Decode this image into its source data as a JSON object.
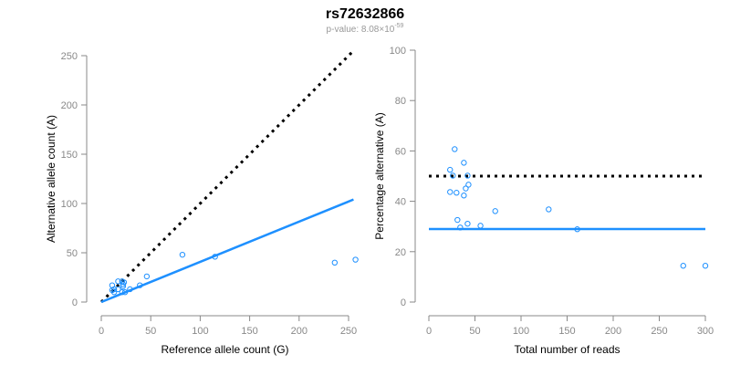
{
  "title": "rs72632866",
  "subtitle_prefix": "p-value: 8.08×10",
  "subtitle_exp": "-59",
  "colors": {
    "points": "#1E90FF",
    "fit": "#1E90FF",
    "expected": "#000000",
    "axis": "#888888"
  },
  "chart_data": [
    {
      "type": "scatter",
      "xlabel": "Reference allele count (G)",
      "ylabel": "Alternative allele count (A)",
      "xlim": [
        0,
        250
      ],
      "ylim": [
        0,
        250
      ],
      "xticks": [
        0,
        50,
        100,
        150,
        200,
        250
      ],
      "yticks": [
        0,
        50,
        100,
        150,
        200,
        250
      ],
      "points": [
        [
          11,
          17
        ],
        [
          17,
          21
        ],
        [
          11,
          12
        ],
        [
          13,
          13
        ],
        [
          21,
          21
        ],
        [
          23,
          20
        ],
        [
          22,
          18
        ],
        [
          13,
          10
        ],
        [
          17,
          13
        ],
        [
          22,
          16
        ],
        [
          46,
          26
        ],
        [
          82,
          48
        ],
        [
          21,
          10
        ],
        [
          29,
          13
        ],
        [
          24,
          10
        ],
        [
          39,
          17
        ],
        [
          115,
          46
        ],
        [
          236,
          40
        ],
        [
          257,
          43
        ]
      ],
      "lines": [
        {
          "name": "expected",
          "style": "dotted",
          "slope": 1.0,
          "intercept": 0,
          "x_range": [
            0,
            255
          ]
        },
        {
          "name": "fit",
          "style": "solid",
          "slope": 0.408,
          "intercept": 0,
          "x_range": [
            0,
            255
          ]
        }
      ]
    },
    {
      "type": "scatter",
      "xlabel": "Total number of reads",
      "ylabel": "Percentage alternative (A)",
      "xlim": [
        0,
        300
      ],
      "ylim": [
        0,
        100
      ],
      "xticks": [
        0,
        50,
        100,
        150,
        200,
        250,
        300
      ],
      "yticks": [
        0,
        20,
        40,
        60,
        80,
        100
      ],
      "points": [
        [
          28,
          60.7
        ],
        [
          38,
          55.3
        ],
        [
          23,
          52.5
        ],
        [
          26,
          50.2
        ],
        [
          42,
          50.2
        ],
        [
          43,
          46.6
        ],
        [
          40,
          45.1
        ],
        [
          23,
          43.7
        ],
        [
          30,
          43.4
        ],
        [
          38,
          42.3
        ],
        [
          72,
          36.1
        ],
        [
          130,
          36.8
        ],
        [
          31,
          32.6
        ],
        [
          42,
          31.1
        ],
        [
          34,
          29.6
        ],
        [
          56,
          30.3
        ],
        [
          161,
          28.9
        ],
        [
          276,
          14.4
        ],
        [
          300,
          14.4
        ]
      ],
      "lines": [
        {
          "name": "expected",
          "style": "dotted",
          "y": 50,
          "x_range": [
            0,
            300
          ]
        },
        {
          "name": "fit",
          "style": "solid",
          "y": 29,
          "x_range": [
            0,
            300
          ]
        }
      ]
    }
  ]
}
